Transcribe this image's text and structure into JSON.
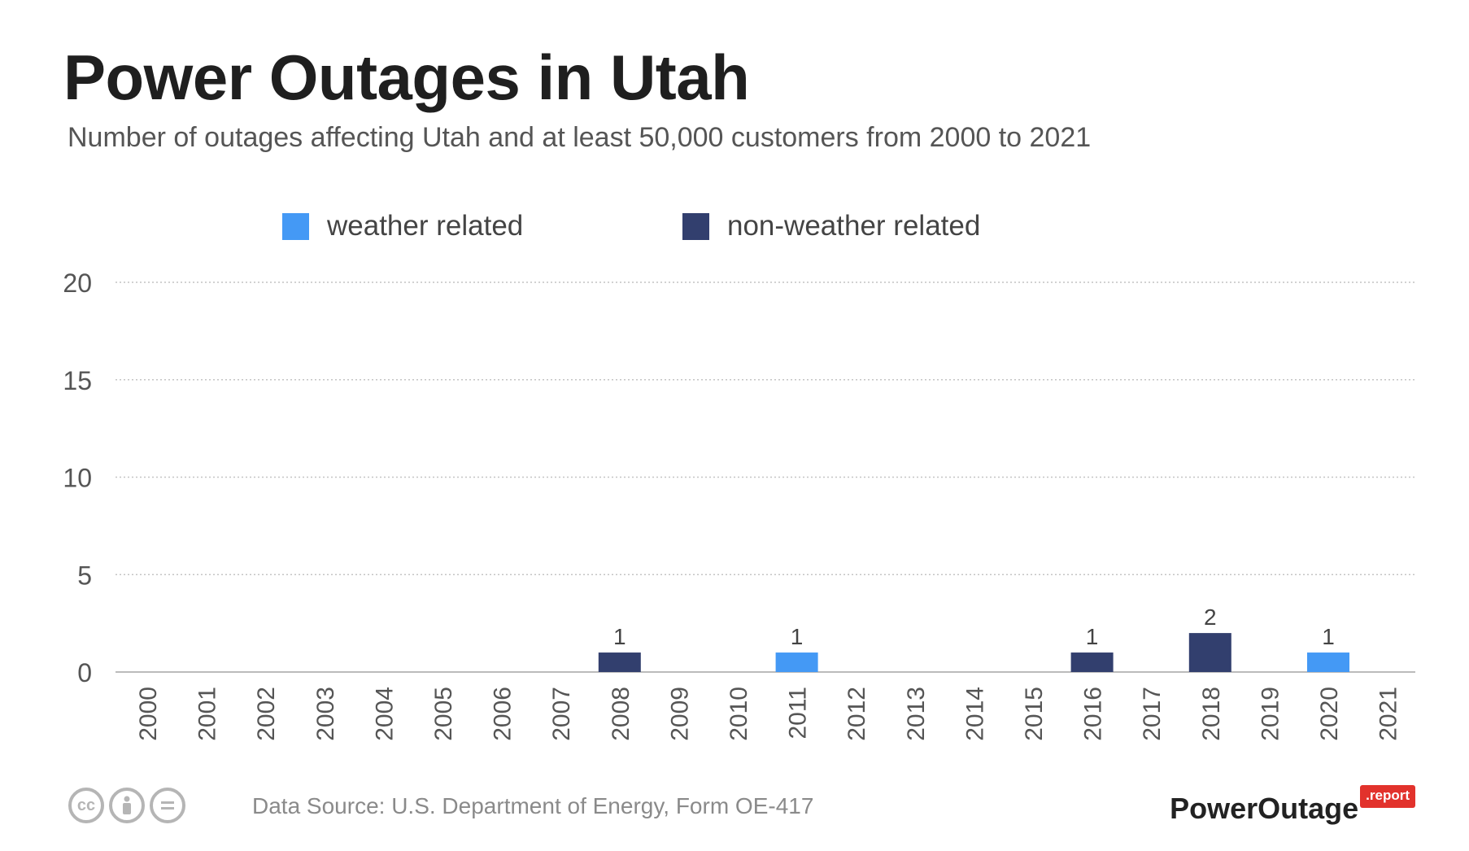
{
  "title": "Power Outages in Utah",
  "subtitle": "Number of outages affecting Utah and at least 50,000 customers from 2000 to 2021",
  "legend": [
    {
      "label": "weather related",
      "color": "#4499f5"
    },
    {
      "label": "non-weather related",
      "color": "#323f6e"
    }
  ],
  "footer": {
    "source": "Data Source: U.S. Department of Energy, Form OE-417",
    "brand": "PowerOutage",
    "brand_tag": ".report",
    "license_icons": [
      "cc-icon",
      "attribution-icon",
      "no-derivatives-icon"
    ]
  },
  "chart_data": {
    "type": "bar",
    "categories": [
      "2000",
      "2001",
      "2002",
      "2003",
      "2004",
      "2005",
      "2006",
      "2007",
      "2008",
      "2009",
      "2010",
      "2011",
      "2012",
      "2013",
      "2014",
      "2015",
      "2016",
      "2017",
      "2018",
      "2019",
      "2020",
      "2021"
    ],
    "series": [
      {
        "name": "weather related",
        "color": "#4499f5",
        "values": [
          0,
          0,
          0,
          0,
          0,
          0,
          0,
          0,
          0,
          0,
          0,
          1,
          0,
          0,
          0,
          0,
          0,
          0,
          0,
          0,
          1,
          0
        ]
      },
      {
        "name": "non-weather related",
        "color": "#323f6e",
        "values": [
          0,
          0,
          0,
          0,
          0,
          0,
          0,
          0,
          1,
          0,
          0,
          0,
          0,
          0,
          0,
          0,
          1,
          0,
          2,
          0,
          0,
          0
        ]
      }
    ],
    "stacked": true,
    "ylim": [
      0,
      20
    ],
    "yticks": [
      0,
      5,
      10,
      15,
      20
    ],
    "grid": true,
    "legend_position": "top",
    "xlabel": "",
    "ylabel": ""
  }
}
